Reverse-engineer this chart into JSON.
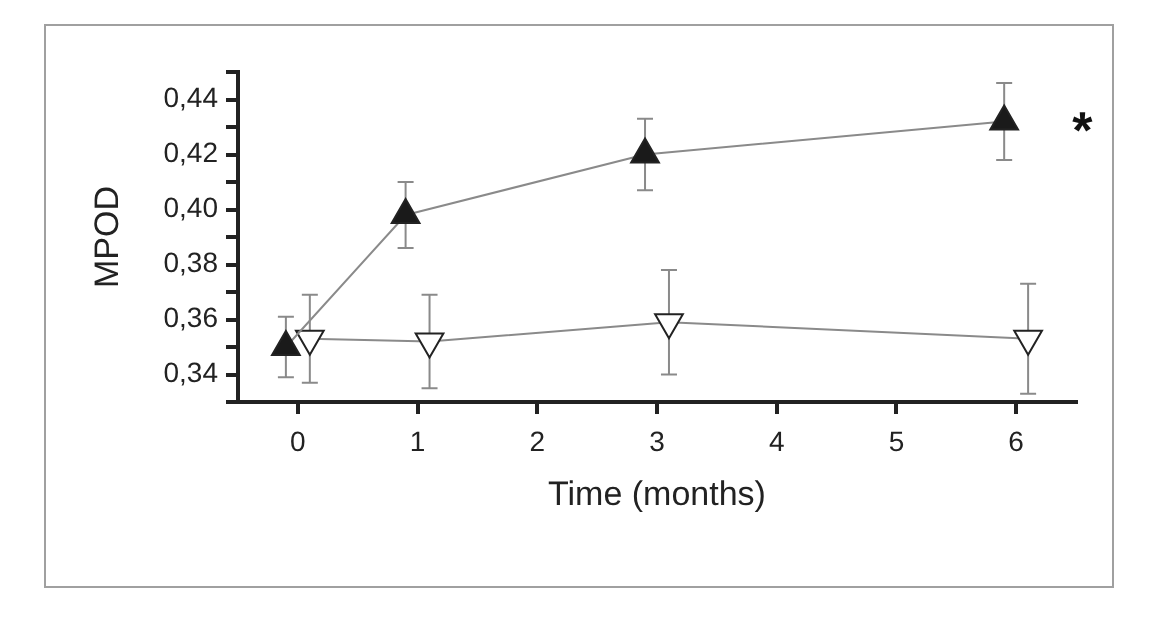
{
  "chart_data": {
    "type": "line",
    "xlabel": "Time (months)",
    "ylabel": "MPOD",
    "xlim": [
      -0.5,
      6.5
    ],
    "xticks": [
      0,
      1,
      2,
      3,
      4,
      5,
      6
    ],
    "ylim": [
      0.33,
      0.45
    ],
    "yticks": [
      {
        "value": 0.33,
        "label": null
      },
      {
        "value": 0.34,
        "label": "0,34"
      },
      {
        "value": 0.35,
        "label": null
      },
      {
        "value": 0.36,
        "label": "0,36"
      },
      {
        "value": 0.37,
        "label": null
      },
      {
        "value": 0.38,
        "label": "0,38"
      },
      {
        "value": 0.39,
        "label": null
      },
      {
        "value": 0.4,
        "label": "0,40"
      },
      {
        "value": 0.41,
        "label": null
      },
      {
        "value": 0.42,
        "label": "0,42"
      },
      {
        "value": 0.43,
        "label": null
      },
      {
        "value": 0.44,
        "label": "0,44"
      },
      {
        "value": 0.45,
        "label": null
      }
    ],
    "grid": false,
    "legend": false,
    "line_style": "solid",
    "series": [
      {
        "color": "#1a1a1a",
        "marker": "triangle",
        "x": [
          -0.1,
          0.9,
          2.9,
          5.9
        ],
        "values": [
          0.35,
          0.398,
          0.42,
          0.432
        ],
        "errors": [
          0.011,
          0.012,
          0.013,
          0.014
        ]
      },
      {
        "color": "#ffffff",
        "marker": "triangle-down",
        "x": [
          0.1,
          1.1,
          3.1,
          6.1
        ],
        "values": [
          0.353,
          0.352,
          0.359,
          0.353
        ],
        "errors": [
          0.016,
          0.017,
          0.019,
          0.02
        ]
      }
    ],
    "annotations": [
      {
        "text": "*",
        "x": 6,
        "y": 0.432
      }
    ]
  }
}
